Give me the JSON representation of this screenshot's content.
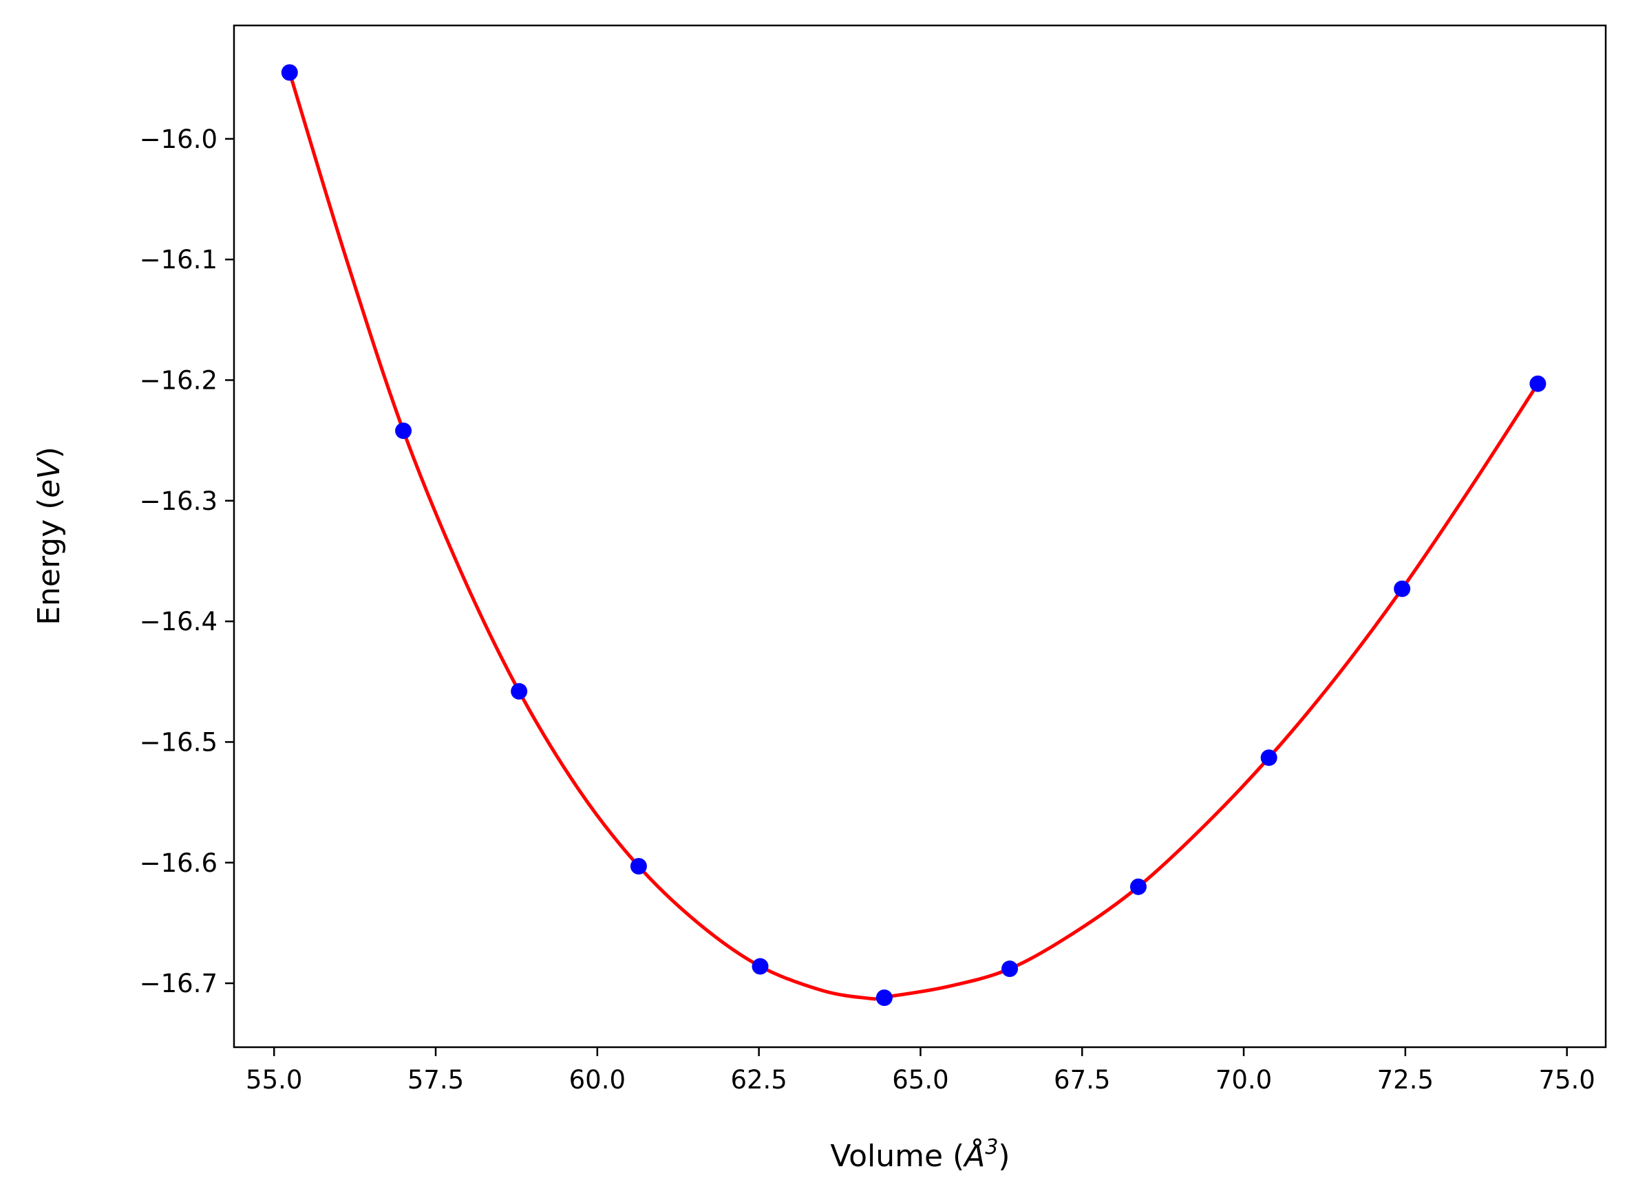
{
  "chart_data": {
    "type": "line",
    "xlabel": "Volume (Å³)",
    "ylabel": "Energy (eV)",
    "xlabel_parts": {
      "text": "Volume (",
      "symbol": "Å",
      "exponent": "3",
      "close": ")"
    },
    "ylabel_parts": {
      "text": "Energy (",
      "unit": "eV",
      "close": ")"
    },
    "xlim": [
      54.38,
      75.6
    ],
    "ylim": [
      -16.753,
      -15.906
    ],
    "xticks": [
      55.0,
      57.5,
      60.0,
      62.5,
      65.0,
      67.5,
      70.0,
      72.5,
      75.0
    ],
    "xtick_labels": [
      "55.0",
      "57.5",
      "60.0",
      "62.5",
      "65.0",
      "67.5",
      "70.0",
      "72.5",
      "75.0"
    ],
    "yticks": [
      -16.0,
      -16.1,
      -16.2,
      -16.3,
      -16.4,
      -16.5,
      -16.6,
      -16.7
    ],
    "ytick_labels": [
      "−16.0",
      "−16.1",
      "−16.2",
      "−16.3",
      "−16.4",
      "−16.5",
      "−16.6",
      "−16.7"
    ],
    "grid": false,
    "series": [
      {
        "kind": "scatter",
        "color": "#0000ff",
        "x": [
          55.24,
          57.0,
          58.79,
          60.64,
          62.52,
          64.44,
          66.38,
          68.37,
          70.39,
          72.45,
          74.55
        ],
        "y": [
          -15.945,
          -16.242,
          -16.458,
          -16.603,
          -16.686,
          -16.712,
          -16.688,
          -16.62,
          -16.513,
          -16.373,
          -16.203
        ]
      },
      {
        "kind": "line",
        "color": "#ff0000",
        "x": [
          55.24,
          56.12,
          57.0,
          57.9,
          58.79,
          59.72,
          60.64,
          61.58,
          62.52,
          63.48,
          64.2,
          64.44,
          65.4,
          66.38,
          67.38,
          68.37,
          69.38,
          70.39,
          71.42,
          72.45,
          73.5,
          74.55
        ],
        "y": [
          -15.945,
          -16.1,
          -16.242,
          -16.36,
          -16.458,
          -16.54,
          -16.603,
          -16.651,
          -16.686,
          -16.706,
          -16.7125,
          -16.7115,
          -16.703,
          -16.688,
          -16.658,
          -16.62,
          -16.57,
          -16.513,
          -16.447,
          -16.373,
          -16.29,
          -16.203
        ]
      }
    ]
  }
}
